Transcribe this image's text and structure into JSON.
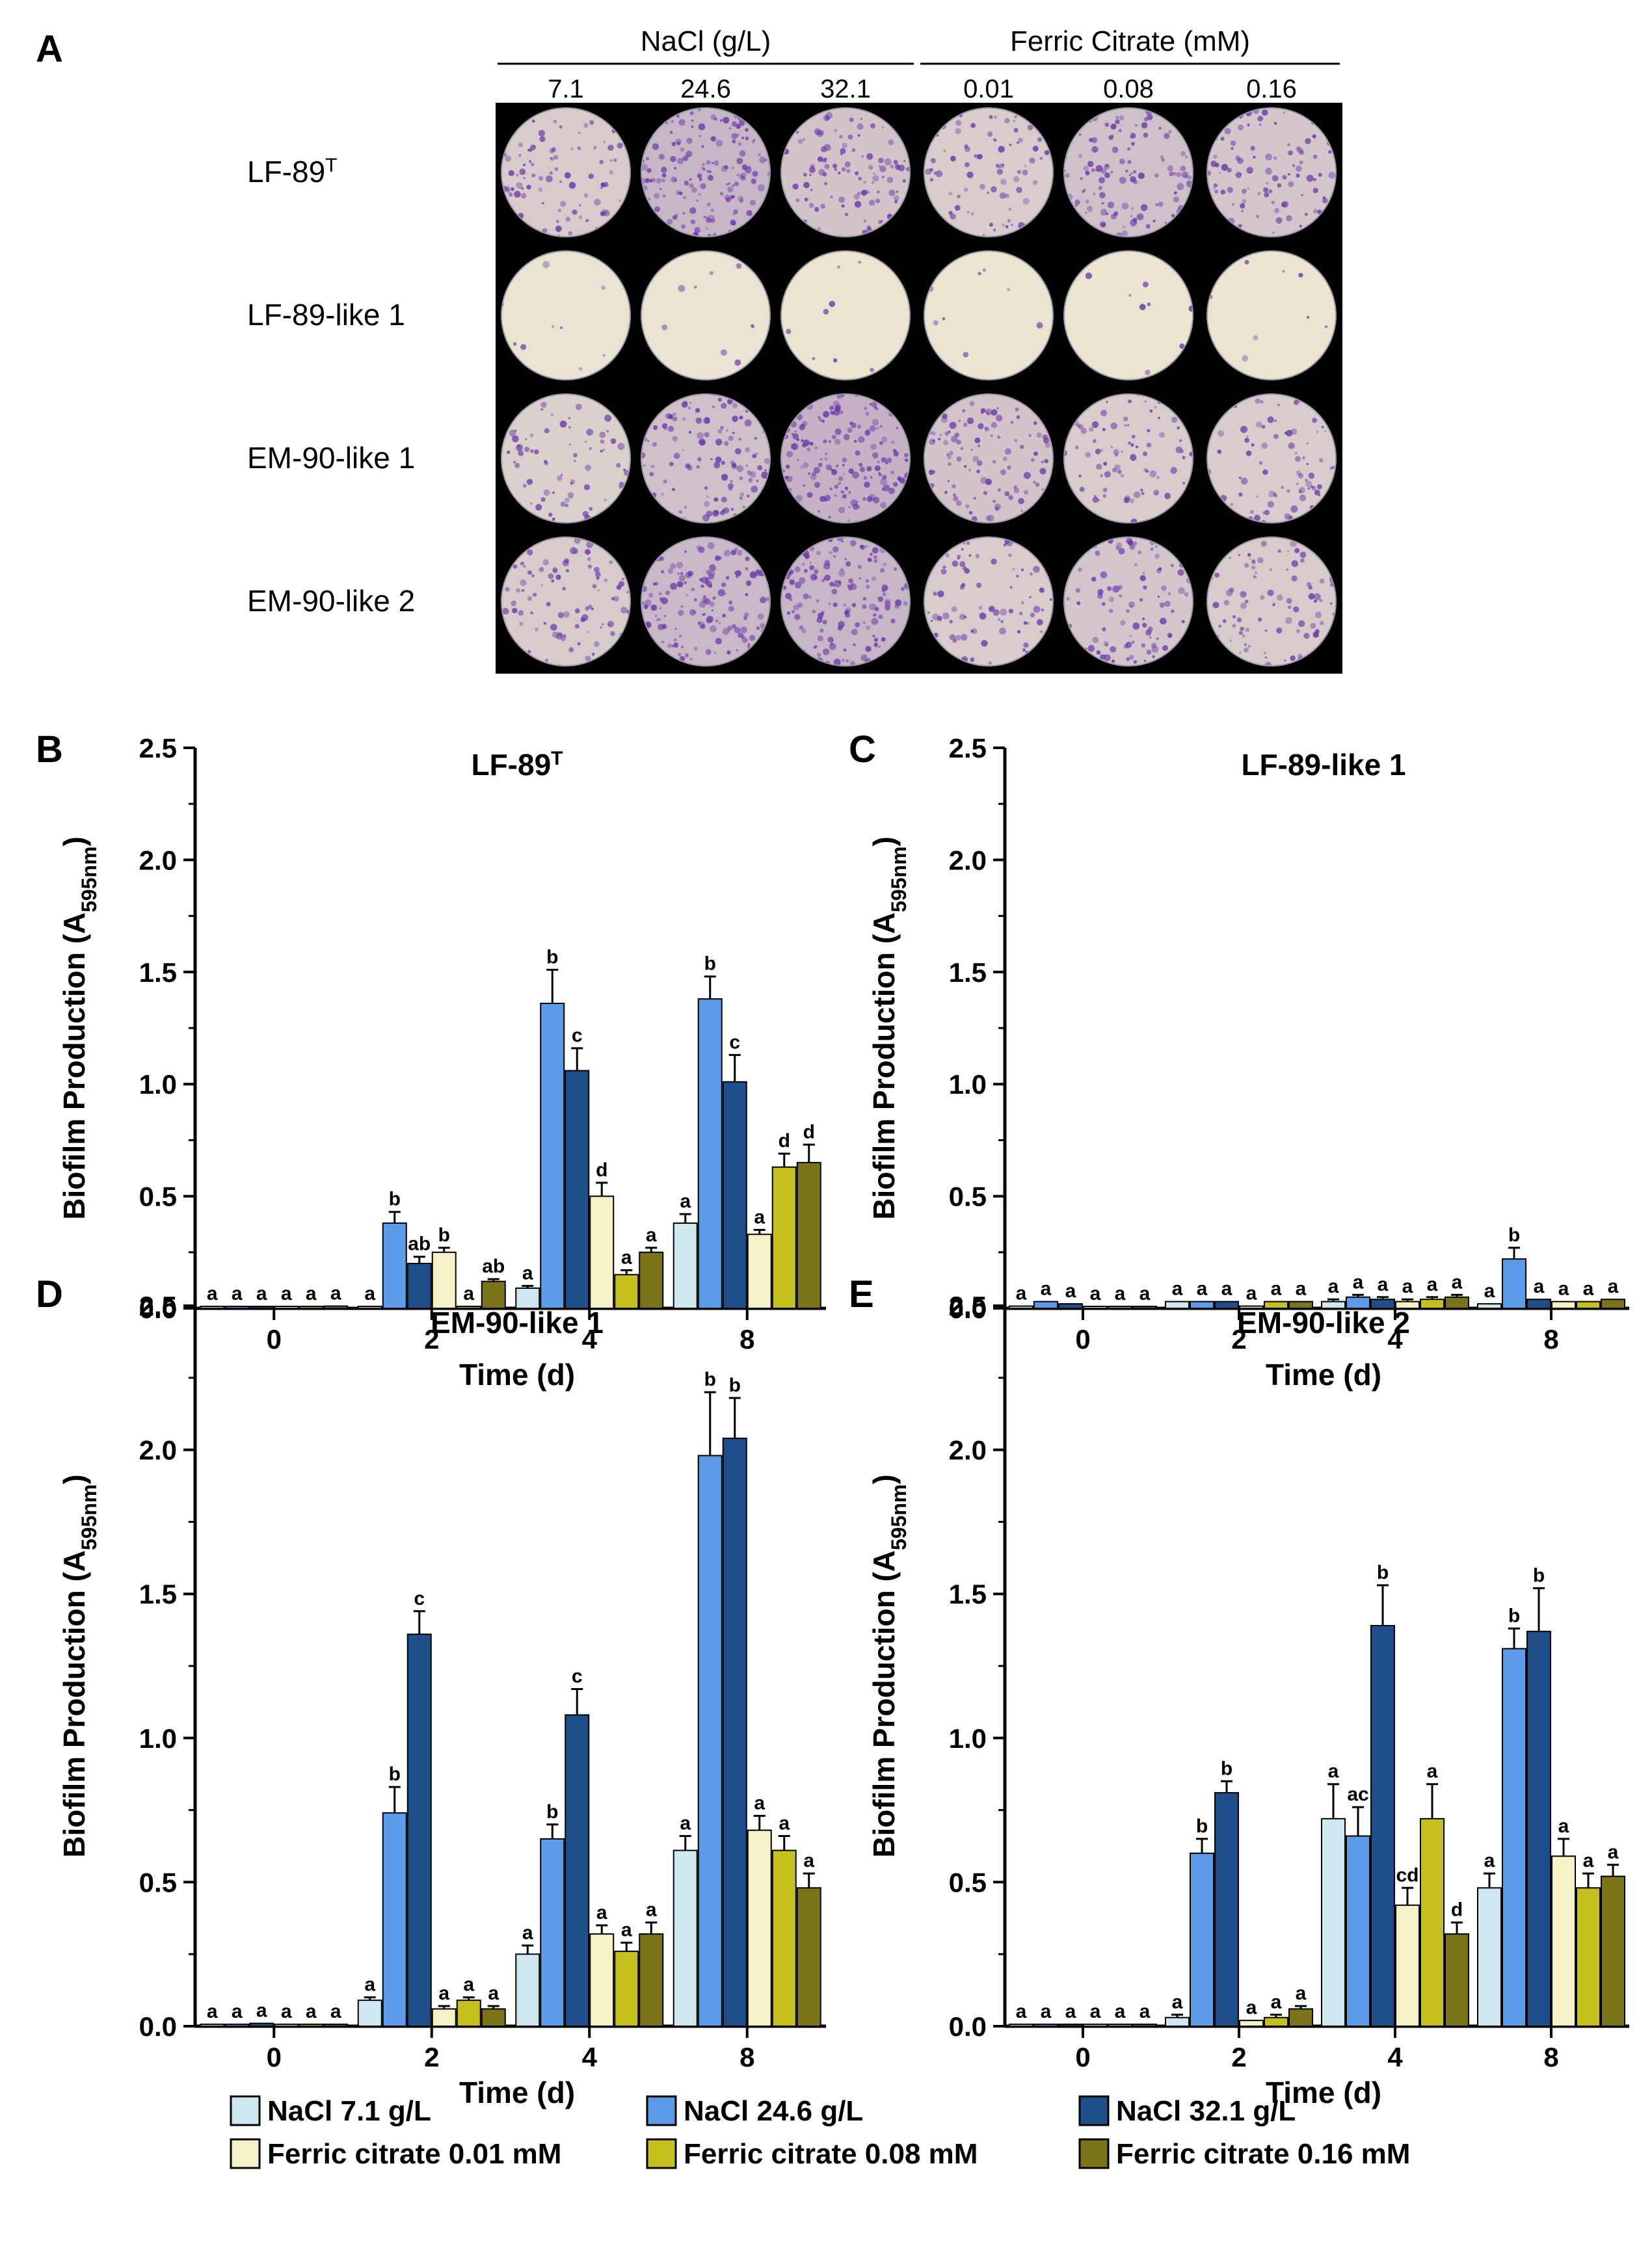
{
  "panel_a": {
    "panel_label": "A",
    "group_headers": [
      {
        "label": "NaCl (g/L)",
        "columns": [
          "7.1",
          "24.6",
          "32.1"
        ]
      },
      {
        "label": "Ferric Citrate (mM)",
        "columns": [
          "0.01",
          "0.08",
          "0.16"
        ]
      }
    ],
    "rows": [
      {
        "label": "LF-89",
        "sup": "T",
        "stain": [
          0.45,
          0.8,
          0.55,
          0.4,
          0.6,
          0.5
        ]
      },
      {
        "label": "LF-89-like 1",
        "sup": "",
        "stain": [
          0.03,
          0.03,
          0.02,
          0.02,
          0.02,
          0.02
        ]
      },
      {
        "label": "EM-90-like 1",
        "sup": "",
        "stain": [
          0.35,
          0.6,
          0.85,
          0.55,
          0.4,
          0.4
        ]
      },
      {
        "label": "EM-90-like 2",
        "sup": "",
        "stain": [
          0.45,
          0.75,
          0.8,
          0.4,
          0.5,
          0.45
        ]
      }
    ],
    "colors": {
      "background": "#000000",
      "plate": "#ebe6d2",
      "stain": "#6a3aa8"
    }
  },
  "legend": {
    "items": [
      {
        "label": "NaCl 7.1 g/L",
        "color": "#cfe8f0"
      },
      {
        "label": "NaCl 24.6 g/L",
        "color": "#5b9bea"
      },
      {
        "label": "NaCl 32.1 g/L",
        "color": "#1f4e8c"
      },
      {
        "label": "Ferric citrate 0.01 mM",
        "color": "#f6f2c7"
      },
      {
        "label": "Ferric citrate 0.08 mM",
        "color": "#c6c01e"
      },
      {
        "label": "Ferric citrate 0.16 mM",
        "color": "#7a7318"
      }
    ]
  },
  "chart_data": [
    {
      "panel_label": "B",
      "type": "bar",
      "title": "LF-89",
      "title_sup": "T",
      "xlabel": "Time (d)",
      "ylabel_main": "Biofilm Production (A",
      "ylabel_sub": "595nm",
      "ylabel_end": ")",
      "ylim": [
        0,
        2.5
      ],
      "yticks": [
        "0.0",
        "0.5",
        "1.0",
        "1.5",
        "2.0",
        "2.5"
      ],
      "categories": [
        "0",
        "2",
        "4",
        "8"
      ],
      "series": [
        {
          "name": "NaCl 7.1 g/L",
          "values": [
            0.0,
            0.0,
            0.09,
            0.38
          ],
          "err": [
            0,
            0,
            0.01,
            0.04
          ],
          "letters": [
            "a",
            "a",
            "a",
            "a"
          ]
        },
        {
          "name": "NaCl 24.6 g/L",
          "values": [
            0.0,
            0.38,
            1.36,
            1.38
          ],
          "err": [
            0,
            0.05,
            0.15,
            0.1
          ],
          "letters": [
            "a",
            "b",
            "b",
            "b"
          ]
        },
        {
          "name": "NaCl 32.1 g/L",
          "values": [
            0.0,
            0.2,
            1.06,
            1.01
          ],
          "err": [
            0,
            0.03,
            0.1,
            0.12
          ],
          "letters": [
            "a",
            "ab",
            "c",
            "c"
          ]
        },
        {
          "name": "Ferric citrate 0.01 mM",
          "values": [
            0.0,
            0.25,
            0.5,
            0.33
          ],
          "err": [
            0,
            0.02,
            0.06,
            0.02
          ],
          "letters": [
            "a",
            "b",
            "d",
            "a"
          ]
        },
        {
          "name": "Ferric citrate 0.08 mM",
          "values": [
            0.0,
            0.0,
            0.15,
            0.63
          ],
          "err": [
            0,
            0,
            0.02,
            0.06
          ],
          "letters": [
            "a",
            "a",
            "a",
            "d"
          ]
        },
        {
          "name": "Ferric citrate 0.16 mM",
          "values": [
            0.01,
            0.12,
            0.25,
            0.65
          ],
          "err": [
            0,
            0.01,
            0.02,
            0.08
          ],
          "letters": [
            "a",
            "ab",
            "a",
            "d"
          ]
        }
      ]
    },
    {
      "panel_label": "C",
      "type": "bar",
      "title": "LF-89-like 1",
      "title_sup": "",
      "xlabel": "Time (d)",
      "ylabel_main": "Biofilm Production (A",
      "ylabel_sub": "595nm",
      "ylabel_end": ")",
      "ylim": [
        0,
        2.5
      ],
      "yticks": [
        "0.0",
        "0.5",
        "1.0",
        "1.5",
        "2.0",
        "2.5"
      ],
      "categories": [
        "0",
        "2",
        "4",
        "8"
      ],
      "series": [
        {
          "name": "NaCl 7.1 g/L",
          "values": [
            0.01,
            0.03,
            0.03,
            0.02
          ],
          "err": [
            0,
            0,
            0.01,
            0
          ],
          "letters": [
            "a",
            "a",
            "a",
            "a"
          ]
        },
        {
          "name": "NaCl 24.6 g/L",
          "values": [
            0.03,
            0.03,
            0.05,
            0.22
          ],
          "err": [
            0,
            0,
            0.01,
            0.05
          ],
          "letters": [
            "a",
            "a",
            "a",
            "b"
          ]
        },
        {
          "name": "NaCl 32.1 g/L",
          "values": [
            0.02,
            0.03,
            0.04,
            0.04
          ],
          "err": [
            0,
            0,
            0.01,
            0
          ],
          "letters": [
            "a",
            "a",
            "a",
            "a"
          ]
        },
        {
          "name": "Ferric citrate 0.01 mM",
          "values": [
            0.0,
            0.01,
            0.03,
            0.03
          ],
          "err": [
            0,
            0,
            0.01,
            0
          ],
          "letters": [
            "a",
            "a",
            "a",
            "a"
          ]
        },
        {
          "name": "Ferric citrate 0.08 mM",
          "values": [
            0.0,
            0.03,
            0.04,
            0.03
          ],
          "err": [
            0,
            0,
            0.01,
            0
          ],
          "letters": [
            "a",
            "a",
            "a",
            "a"
          ]
        },
        {
          "name": "Ferric citrate 0.16 mM",
          "values": [
            0.0,
            0.03,
            0.05,
            0.04
          ],
          "err": [
            0,
            0,
            0.01,
            0
          ],
          "letters": [
            "a",
            "a",
            "a",
            "a"
          ]
        }
      ]
    },
    {
      "panel_label": "D",
      "type": "bar",
      "title": "EM-90-like 1",
      "title_sup": "",
      "xlabel": "Time (d)",
      "ylabel_main": "Biofilm Production (A",
      "ylabel_sub": "595nm",
      "ylabel_end": ")",
      "ylim": [
        0,
        2.5
      ],
      "yticks": [
        "0.0",
        "0.5",
        "1.0",
        "1.5",
        "2.0",
        "2.5"
      ],
      "categories": [
        "0",
        "2",
        "4",
        "8"
      ],
      "series": [
        {
          "name": "NaCl 7.1 g/L",
          "values": [
            0.0,
            0.09,
            0.25,
            0.61
          ],
          "err": [
            0,
            0.01,
            0.03,
            0.05
          ],
          "letters": [
            "a",
            "a",
            "a",
            "a"
          ]
        },
        {
          "name": "NaCl 24.6 g/L",
          "values": [
            0.0,
            0.74,
            0.65,
            1.98
          ],
          "err": [
            0,
            0.09,
            0.05,
            0.22
          ],
          "letters": [
            "a",
            "b",
            "b",
            "b"
          ]
        },
        {
          "name": "NaCl 32.1 g/L",
          "values": [
            0.01,
            1.36,
            1.08,
            2.04
          ],
          "err": [
            0,
            0.08,
            0.09,
            0.14
          ],
          "letters": [
            "a",
            "c",
            "c",
            "b"
          ]
        },
        {
          "name": "Ferric citrate 0.01 mM",
          "values": [
            0.0,
            0.06,
            0.32,
            0.68
          ],
          "err": [
            0,
            0.01,
            0.03,
            0.05
          ],
          "letters": [
            "a",
            "a",
            "a",
            "a"
          ]
        },
        {
          "name": "Ferric citrate 0.08 mM",
          "values": [
            0.0,
            0.09,
            0.26,
            0.61
          ],
          "err": [
            0,
            0.01,
            0.03,
            0.05
          ],
          "letters": [
            "a",
            "a",
            "a",
            "a"
          ]
        },
        {
          "name": "Ferric citrate 0.16 mM",
          "values": [
            0.0,
            0.06,
            0.32,
            0.48
          ],
          "err": [
            0,
            0.01,
            0.04,
            0.05
          ],
          "letters": [
            "a",
            "a",
            "a",
            "a"
          ]
        }
      ]
    },
    {
      "panel_label": "E",
      "type": "bar",
      "title": "EM-90-like 2",
      "title_sup": "",
      "xlabel": "Time (d)",
      "ylabel_main": "Biofilm Production (A",
      "ylabel_sub": "595nm",
      "ylabel_end": ")",
      "ylim": [
        0,
        2.5
      ],
      "yticks": [
        "0.0",
        "0.5",
        "1.0",
        "1.5",
        "2.0",
        "2.5"
      ],
      "categories": [
        "0",
        "2",
        "4",
        "8"
      ],
      "series": [
        {
          "name": "NaCl 7.1 g/L",
          "values": [
            0.0,
            0.03,
            0.72,
            0.48
          ],
          "err": [
            0,
            0.01,
            0.12,
            0.05
          ],
          "letters": [
            "a",
            "a",
            "a",
            "a"
          ]
        },
        {
          "name": "NaCl 24.6 g/L",
          "values": [
            0.0,
            0.6,
            0.66,
            1.31
          ],
          "err": [
            0,
            0.05,
            0.1,
            0.07
          ],
          "letters": [
            "a",
            "b",
            "ac",
            "b"
          ]
        },
        {
          "name": "NaCl 32.1 g/L",
          "values": [
            0.0,
            0.81,
            1.39,
            1.37
          ],
          "err": [
            0,
            0.04,
            0.14,
            0.15
          ],
          "letters": [
            "a",
            "b",
            "b",
            "b"
          ]
        },
        {
          "name": "Ferric citrate 0.01 mM",
          "values": [
            0.0,
            0.02,
            0.42,
            0.59
          ],
          "err": [
            0,
            0,
            0.06,
            0.06
          ],
          "letters": [
            "a",
            "a",
            "cd",
            "a"
          ]
        },
        {
          "name": "Ferric citrate 0.08 mM",
          "values": [
            0.0,
            0.03,
            0.72,
            0.48
          ],
          "err": [
            0,
            0.01,
            0.12,
            0.05
          ],
          "letters": [
            "a",
            "a",
            "a",
            "a"
          ]
        },
        {
          "name": "Ferric citrate 0.16 mM",
          "values": [
            0.0,
            0.06,
            0.32,
            0.52
          ],
          "err": [
            0,
            0.01,
            0.04,
            0.04
          ],
          "letters": [
            "a",
            "a",
            "d",
            "a"
          ]
        }
      ]
    }
  ]
}
